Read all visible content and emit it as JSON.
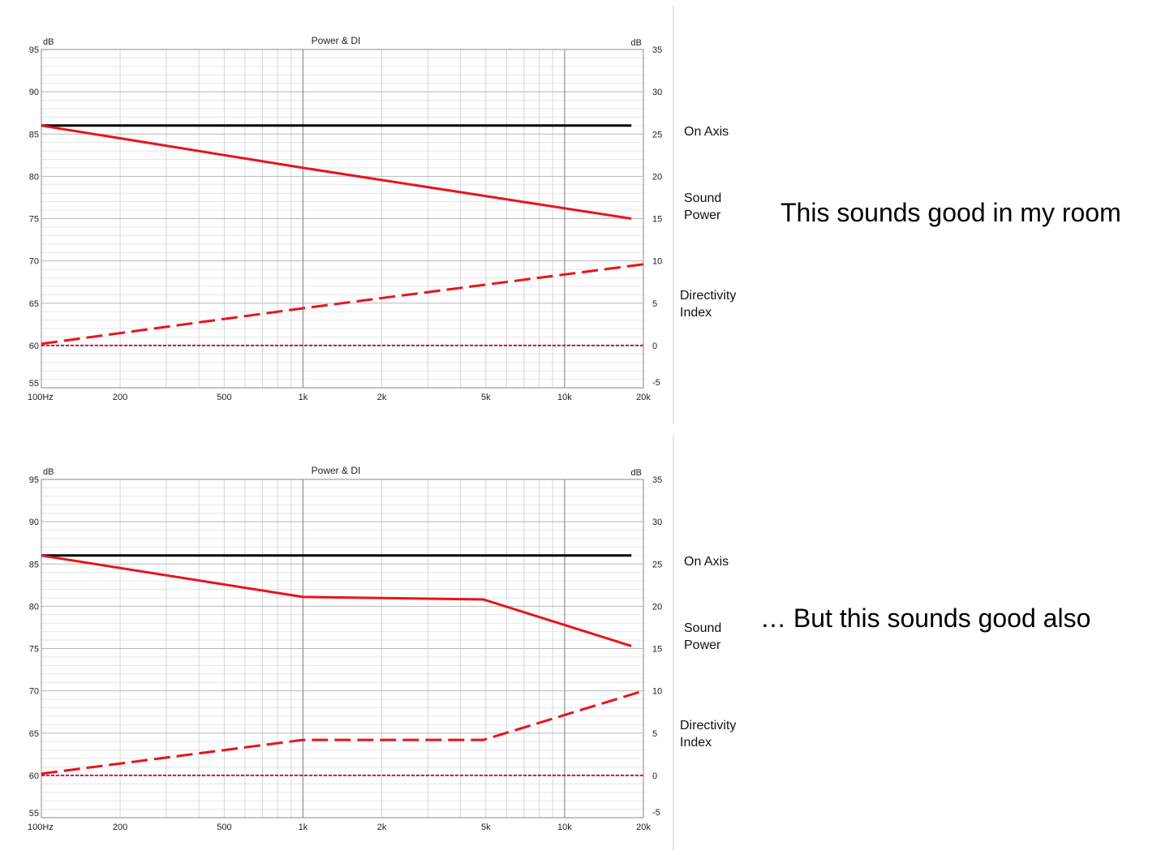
{
  "chart_data": [
    {
      "type": "line",
      "title": "Power & DI",
      "ylabel": "dB",
      "y2label": "dB",
      "xscale": "log",
      "xlim": [
        100,
        20000
      ],
      "ylim": [
        55,
        95
      ],
      "y2lim": [
        -5,
        35
      ],
      "x_ticks": [
        100,
        200,
        500,
        1000,
        2000,
        5000,
        10000,
        20000
      ],
      "x_tick_labels": [
        "100Hz",
        "200",
        "500",
        "1k",
        "2k",
        "5k",
        "10k",
        "20k"
      ],
      "y_ticks": [
        95,
        90,
        85,
        80,
        75,
        70,
        65,
        60,
        55
      ],
      "y2_ticks": [
        35,
        30,
        25,
        20,
        15,
        10,
        5,
        0,
        -5
      ],
      "grid": true,
      "series": [
        {
          "name": "On Axis",
          "axis": "left",
          "style": "solid",
          "color": "#000000",
          "x": [
            100,
            18000
          ],
          "y": [
            86,
            86
          ]
        },
        {
          "name": "Sound\nPower",
          "axis": "left",
          "style": "solid",
          "color": "#e8141c",
          "x": [
            100,
            1000,
            18000
          ],
          "y": [
            86,
            81,
            75
          ]
        },
        {
          "name": "Directivity\nIndex",
          "axis": "right",
          "style": "dashed",
          "color": "#e8141c",
          "x": [
            100,
            1000,
            20000
          ],
          "y": [
            0.2,
            4.4,
            9.6
          ]
        },
        {
          "name": "",
          "axis": "right",
          "style": "dotted",
          "color": "#c2185b",
          "x": [
            100,
            20000
          ],
          "y": [
            0,
            0
          ]
        }
      ],
      "caption": "This sounds good in my room"
    },
    {
      "type": "line",
      "title": "Power & DI",
      "ylabel": "dB",
      "y2label": "dB",
      "xscale": "log",
      "xlim": [
        100,
        20000
      ],
      "ylim": [
        55,
        95
      ],
      "y2lim": [
        -5,
        35
      ],
      "x_ticks": [
        100,
        200,
        500,
        1000,
        2000,
        5000,
        10000,
        20000
      ],
      "x_tick_labels": [
        "100Hz",
        "200",
        "500",
        "1k",
        "2k",
        "5k",
        "10k",
        "20k"
      ],
      "y_ticks": [
        95,
        90,
        85,
        80,
        75,
        70,
        65,
        60,
        55
      ],
      "y2_ticks": [
        35,
        30,
        25,
        20,
        15,
        10,
        5,
        0,
        -5
      ],
      "grid": true,
      "series": [
        {
          "name": "On Axis",
          "axis": "left",
          "style": "solid",
          "color": "#000000",
          "x": [
            100,
            18000
          ],
          "y": [
            86,
            86
          ]
        },
        {
          "name": "Sound\nPower",
          "axis": "left",
          "style": "solid",
          "color": "#e8141c",
          "x": [
            100,
            1000,
            4900,
            18000
          ],
          "y": [
            86,
            81.1,
            80.8,
            75.3
          ]
        },
        {
          "name": "Directivity\nIndex",
          "axis": "right",
          "style": "dashed",
          "color": "#e8141c",
          "x": [
            100,
            1000,
            4900,
            20000
          ],
          "y": [
            0.2,
            4.2,
            4.2,
            10
          ]
        },
        {
          "name": "",
          "axis": "right",
          "style": "dotted",
          "color": "#c2185b",
          "x": [
            100,
            20000
          ],
          "y": [
            0,
            0
          ]
        }
      ],
      "caption": "… But this sounds good also"
    }
  ]
}
